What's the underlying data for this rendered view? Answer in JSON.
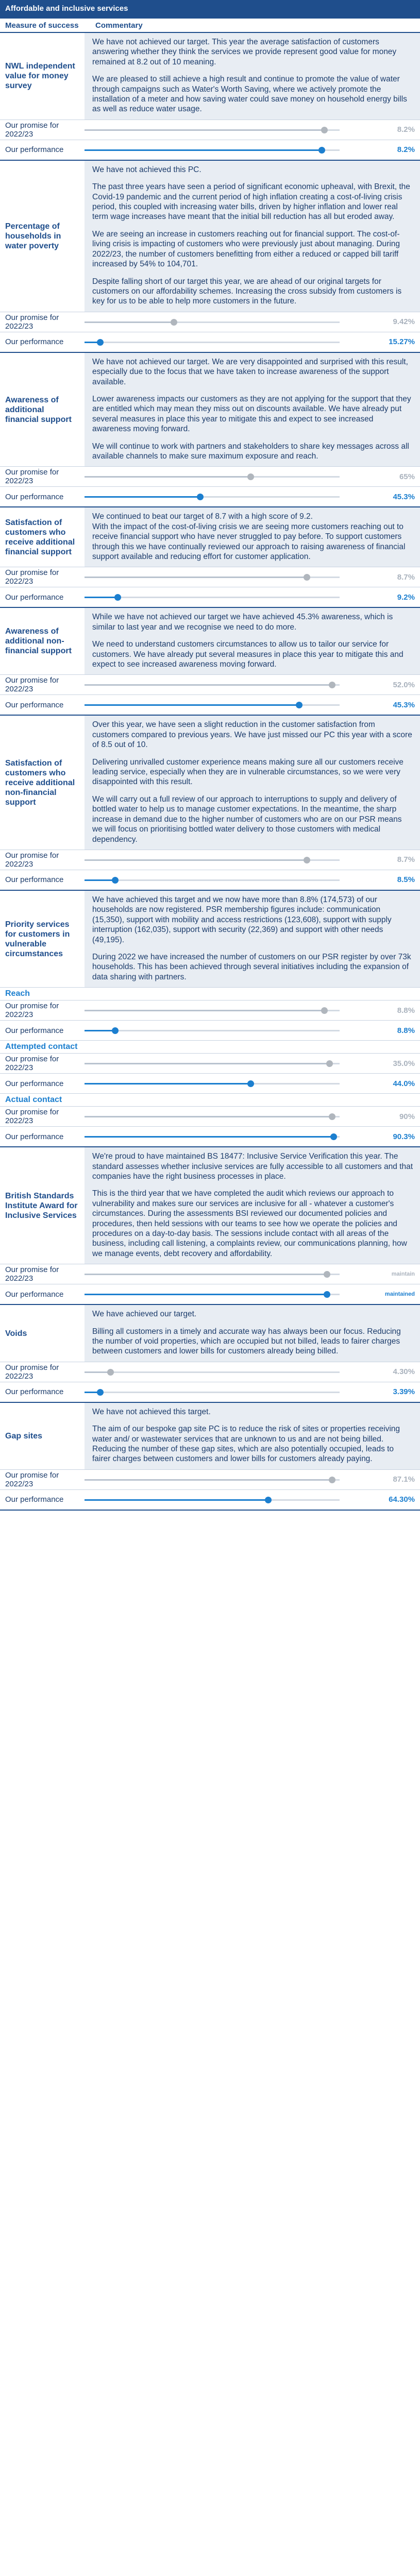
{
  "banner": "Affordable and inclusive services",
  "headers": {
    "measure": "Measure of success",
    "commentary": "Commentary"
  },
  "labels": {
    "promise": "Our promise for 2022/23",
    "performance": "Our performance"
  },
  "sections": [
    {
      "measure": "NWL independent value for money survey",
      "paragraphs": [
        "We have not achieved our target. This year the average satisfaction of customers answering whether they think the services we provide represent good value for money remained at 8.2 out of 10 meaning.",
        "We are pleased to still achieve a high result and continue to promote the value of water through campaigns such as Water's Worth Saving, where we actively promote the installation of a meter and how saving water could save money on household energy bills as well as reduce water usage."
      ],
      "metrics": [
        {
          "name": "promise-1",
          "target": {
            "value": "8.2%",
            "level": 0.94
          },
          "actual": {
            "value": "8.2%",
            "level": 0.93
          }
        }
      ]
    },
    {
      "measure": "Percentage of households in water poverty",
      "paragraphs": [
        "We have not achieved this PC.",
        "The past three years have seen a period of significant economic upheaval, with Brexit, the Covid-19 pandemic and the current period of high inflation creating a cost-of-living crisis period, this coupled with increasing water bills, driven by higher inflation and lower real term wage increases have meant that the initial bill reduction has all but eroded away.",
        "We are seeing an increase in customers reaching out for financial support. The cost-of-living crisis is impacting of customers who were previously just about managing. During 2022/23, the number of customers benefitting from either a reduced or capped bill tariff increased by 54% to 104,701.",
        "Despite falling short of our target this year, we are ahead of our original targets for customers on our affordability schemes. Increasing the cross subsidy from customers is key for us to be able to help more customers in the future."
      ],
      "metrics": [
        {
          "name": "promise-2",
          "target": {
            "value": "9.42%",
            "level": 0.35
          },
          "actual": {
            "value": "15.27%",
            "level": 0.06
          }
        }
      ]
    },
    {
      "measure": "Awareness of additional financial support",
      "paragraphs": [
        "We have not achieved our target. We are very disappointed and surprised with this result, especially due to the focus that we have taken to increase awareness of the support available.",
        "Lower awareness impacts our customers as they are not applying for the support that they are entitled which may mean they miss out on discounts available. We have already put several measures in place this year to mitigate this and expect to see increased awareness moving forward.",
        "We will continue to work with partners and stakeholders to share key messages across all available channels to make sure maximum exposure and reach."
      ],
      "metrics": [
        {
          "name": "promise-3",
          "target": {
            "value": "65%",
            "level": 0.65
          },
          "actual": {
            "value": "45.3%",
            "level": 0.453
          }
        }
      ]
    },
    {
      "measure": "Satisfaction of customers who receive additional financial support",
      "paragraphs": [
        "We continued to beat our target of 8.7 with a high score of 9.2.\nWith the impact of the cost-of-living crisis we are seeing more customers reaching out to receive financial support who have never struggled to pay before. To support customers through this we have continually reviewed our approach to raising awareness of financial support available and reducing effort for customer application."
      ],
      "metrics": [
        {
          "name": "promise-4",
          "target": {
            "value": "8.7%",
            "level": 0.87
          },
          "actual": {
            "value": "9.2%",
            "level": 0.13
          }
        }
      ]
    },
    {
      "measure": "Awareness of additional non-financial support",
      "paragraphs": [
        "While we have not achieved our target we have achieved 45.3% awareness, which is similar to last year and we recognise we need to do more.",
        "We need to understand customers circumstances to allow us to tailor our service for customers. We have already put several measures in place this year to mitigate this and expect to see increased awareness moving forward."
      ],
      "metrics": [
        {
          "name": "promise-5",
          "target": {
            "value": "52.0%",
            "level": 0.97
          },
          "actual": {
            "value": "45.3%",
            "level": 0.84
          }
        }
      ]
    },
    {
      "measure": "Satisfaction of customers who receive additional non-financial support",
      "paragraphs": [
        "Over this year, we have seen a slight reduction in the customer satisfaction from customers compared to previous years. We have just missed our PC this year with a score of 8.5 out of 10.",
        "Delivering unrivalled customer experience means making sure all our customers receive leading service, especially when they are in vulnerable circumstances, so we were very disappointed with this result.",
        "We will carry out a full review of our approach to interruptions to supply and delivery of bottled water to help us to manage customer expectations. In the meantime, the sharp increase in demand due to the higher number of customers who are on our PSR means we will focus on prioritising bottled water delivery to those customers with medical dependency."
      ],
      "metrics": [
        {
          "name": "promise-6",
          "target": {
            "value": "8.7%",
            "level": 0.87
          },
          "actual": {
            "value": "8.5%",
            "level": 0.12
          }
        }
      ]
    },
    {
      "measure": "Priority services for customers in vulnerable circumstances",
      "paragraphs": [
        "We have achieved this target and we now have more than 8.8% (174,573) of our households are now registered. PSR membership figures include: communication (15,350), support with mobility and access restrictions (123,608), support with supply interruption (162,035), support with security (22,369) and support with other needs (49,195).",
        "During 2022 we have increased the number of customers on our PSR register by over 73k households. This has been achieved through several initiatives including the expansion of data sharing with partners."
      ],
      "subs": [
        {
          "heading": "Reach",
          "target": {
            "value": "8.8%",
            "level": 0.94
          },
          "actual": {
            "value": "8.8%",
            "level": 0.12
          }
        },
        {
          "heading": "Attempted contact",
          "target": {
            "value": "35.0%",
            "level": 0.96
          },
          "actual": {
            "value": "44.0%",
            "level": 0.65
          }
        },
        {
          "heading": "Actual contact",
          "target": {
            "value": "90%",
            "level": 0.97
          },
          "actual": {
            "value": "90.3%",
            "level": 0.975
          }
        }
      ]
    },
    {
      "measure": "British Standards Institute Award for Inclusive Services",
      "paragraphs": [
        "We're proud to have maintained BS 18477: Inclusive Service Verification this year. The standard assesses whether inclusive services are fully accessible to all customers and that companies have the right business processes in place.",
        "This is the third year that we have completed the audit which reviews our approach to vulnerability and makes sure our services are inclusive for all - whatever a customer's circumstances. During the assessments BSI reviewed our documented policies and procedures, then held sessions with our teams to see how we operate the policies and procedures on a day-to-day basis. The sessions include contact with all areas of the business, including call listening, a complaints review, our communications planning, how we manage events, debt recovery and affordability."
      ],
      "metrics": [
        {
          "name": "promise-8",
          "target": {
            "value": "maintain",
            "level": 0.95,
            "small": true
          },
          "actual": {
            "value": "maintained",
            "level": 0.95,
            "small": true
          }
        }
      ]
    },
    {
      "measure": "Voids",
      "paragraphs": [
        "We have achieved our target.",
        "Billing all customers in a timely and accurate way has always been our focus. Reducing the number of void properties, which are occupied but not billed, leads to fairer charges between customers and lower bills for customers already being billed."
      ],
      "metrics": [
        {
          "name": "promise-9",
          "target": {
            "value": "4.30%",
            "level": 0.1
          },
          "actual": {
            "value": "3.39%",
            "level": 0.06
          }
        }
      ]
    },
    {
      "measure": "Gap sites",
      "paragraphs": [
        "We have not achieved this target.",
        "The aim of our bespoke gap site PC is to reduce the risk of sites or properties receiving water and/ or wastewater services that are unknown to us and are not being billed. Reducing the number of these gap sites, which are also potentially occupied, leads to fairer charges between customers and lower bills for customers already paying."
      ],
      "metrics": [
        {
          "name": "promise-10",
          "target": {
            "value": "87.1%",
            "level": 0.97
          },
          "actual": {
            "value": "64.30%",
            "level": 0.72
          }
        }
      ]
    }
  ],
  "colors": {
    "brand": "#1f4e8c",
    "accent": "#1c7fcf",
    "target": "#b0b6bd",
    "panel": "#e8edf3"
  }
}
